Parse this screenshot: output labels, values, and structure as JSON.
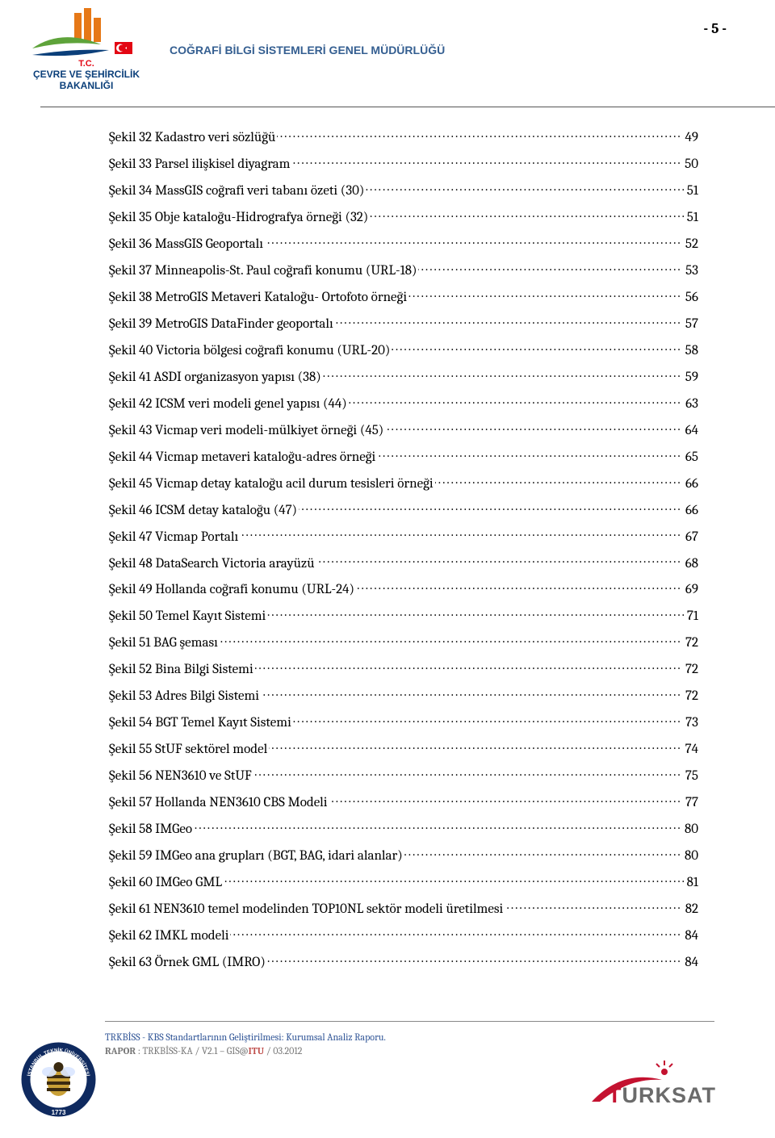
{
  "header": {
    "title": "COĞRAFİ BİLGİ SİSTEMLERİ GENEL MÜDÜRLÜĞÜ",
    "page_number": "- 5 -",
    "logo_left_lines": [
      "T.C.",
      "ÇEVRE VE ŞEHİRCİLİK",
      "BAKANLIĞI"
    ]
  },
  "toc": [
    {
      "label": "Şekil 32 Kadastro veri sözlüğü",
      "page": "49"
    },
    {
      "label": "Şekil 33 Parsel ilişkisel diyagram",
      "page": "50"
    },
    {
      "label": "Şekil 34 MassGIS coğrafi veri tabanı özeti (30)",
      "page": "51"
    },
    {
      "label": "Şekil 35 Obje kataloğu-Hidrografya örneği (32)",
      "page": "51"
    },
    {
      "label": "Şekil 36 MassGIS Geoportalı",
      "page": "52"
    },
    {
      "label": "Şekil 37 Minneapolis-St. Paul coğrafi konumu (URL-18)",
      "page": "53"
    },
    {
      "label": "Şekil 38 MetroGIS Metaveri Kataloğu- Ortofoto örneği",
      "page": "56"
    },
    {
      "label": "Şekil 39 MetroGIS DataFinder geoportalı",
      "page": "57"
    },
    {
      "label": "Şekil 40 Victoria bölgesi coğrafi konumu (URL-20)",
      "page": "58"
    },
    {
      "label": "Şekil 41 ASDI organizasyon yapısı (38)",
      "page": "59"
    },
    {
      "label": "Şekil 42 ICSM veri modeli genel yapısı (44)",
      "page": "63"
    },
    {
      "label": "Şekil 43 Vicmap veri modeli-mülkiyet örneği (45)",
      "page": "64"
    },
    {
      "label": "Şekil 44 Vicmap metaveri kataloğu-adres örneği",
      "page": "65"
    },
    {
      "label": "Şekil 45 Vicmap detay kataloğu acil durum tesisleri örneği",
      "page": "66"
    },
    {
      "label": "Şekil 46 ICSM detay kataloğu (47)",
      "page": "66"
    },
    {
      "label": "Şekil 47 Vicmap Portalı",
      "page": "67"
    },
    {
      "label": "Şekil 48 DataSearch Victoria arayüzü",
      "page": "68"
    },
    {
      "label": "Şekil 49 Hollanda coğrafi konumu (URL-24)",
      "page": "69"
    },
    {
      "label": "Şekil 50 Temel Kayıt Sistemi",
      "page": "71"
    },
    {
      "label": "Şekil 51 BAG şeması",
      "page": "72"
    },
    {
      "label": "Şekil 52 Bina Bilgi Sistemi",
      "page": "72"
    },
    {
      "label": "Şekil 53 Adres Bilgi Sistemi",
      "page": "72"
    },
    {
      "label": "Şekil 54 BGT Temel Kayıt Sistemi",
      "page": "73"
    },
    {
      "label": "Şekil 55 StUF sektörel model",
      "page": "74"
    },
    {
      "label": "Şekil 56 NEN3610 ve StUF",
      "page": "75"
    },
    {
      "label": "Şekil 57 Hollanda NEN3610 CBS Modeli",
      "page": "77"
    },
    {
      "label": "Şekil 58 IMGeo",
      "page": "80"
    },
    {
      "label": "Şekil 59 IMGeo ana grupları (BGT, BAG, idari alanlar)",
      "page": "80"
    },
    {
      "label": "Şekil 60 IMGeo GML",
      "page": "81"
    },
    {
      "label": "Şekil 61 NEN3610 temel modelinden TOP10NL sektör modeli üretilmesi",
      "page": "82"
    },
    {
      "label": "Şekil 62 IMKL modeli",
      "page": "84"
    },
    {
      "label": "Şekil 63 Örnek GML (IMRO)",
      "page": "84"
    }
  ],
  "footer": {
    "line1": "TRKBİSS - KBS Standartlarının Geliştirilmesi: Kurumsal Analiz Raporu.",
    "rapor_label": "RAPOR",
    "rapor_text": " : TRKBİSS-KA / V2.1 – GIS@",
    "itu": "ITU",
    "rapor_suffix": " / 03.2012",
    "itu_university": "İSTANBUL TEKNİK ÜNİVERSİTESİ",
    "itu_year": "1773",
    "turksat": "TÜRKSAT"
  },
  "colors": {
    "header_blue": "#355f91",
    "footer_blue": "#2f5496",
    "footer_gray": "#777777",
    "itu_red": "#c0504d",
    "bakanlık_red": "#e30613",
    "bakanlık_blue_dark": "#0b3f7a",
    "turksat_red": "#c41230",
    "turksat_gray": "#6b6b6b",
    "itu_navy": "#0f2a5f",
    "itu_gold": "#c9a037"
  }
}
